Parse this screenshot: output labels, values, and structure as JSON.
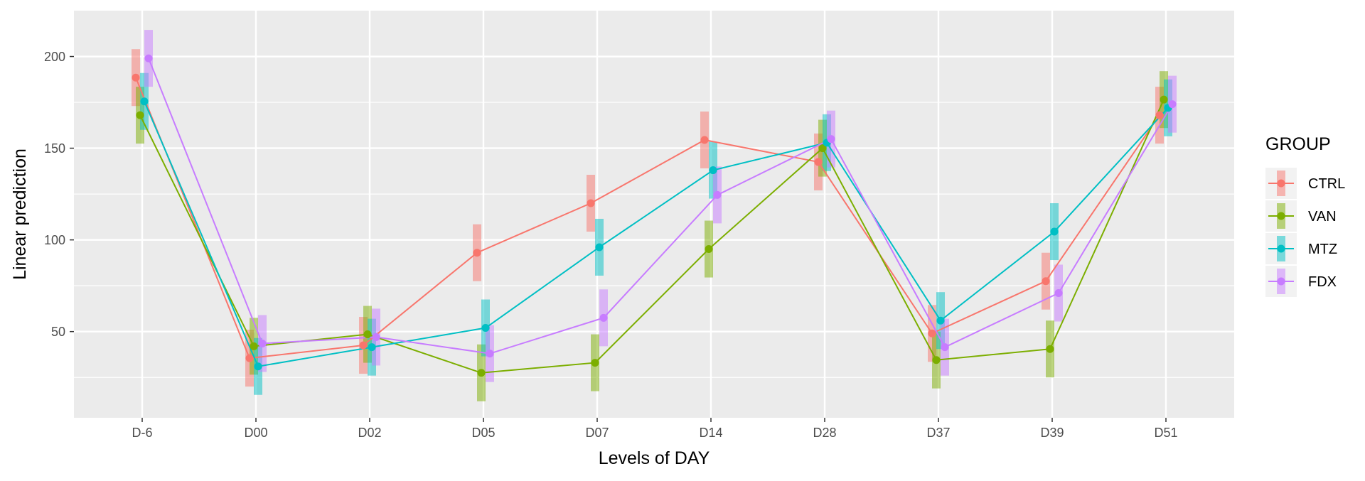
{
  "chart_data": {
    "type": "line",
    "title": "",
    "xlabel": "Levels of DAY",
    "ylabel": "Linear prediction",
    "categories": [
      "D-6",
      "D00",
      "D02",
      "D05",
      "D07",
      "D14",
      "D28",
      "D37",
      "D39",
      "D51"
    ],
    "ylim": [
      3,
      225
    ],
    "yticks": [
      50,
      100,
      150,
      200
    ],
    "grid": true,
    "legend": {
      "title": "GROUP",
      "position": "right"
    },
    "error_bar_halfwidth": 15.5,
    "series": [
      {
        "name": "CTRL",
        "color": "#F8766D",
        "values": [
          188.5,
          35.5,
          42.5,
          93.0,
          120.0,
          154.5,
          142.5,
          49.0,
          77.5,
          168.0
        ]
      },
      {
        "name": "VAN",
        "color": "#7CAE00",
        "values": [
          168.0,
          42.0,
          48.5,
          27.5,
          33.0,
          95.0,
          150.0,
          34.5,
          40.5,
          176.5
        ]
      },
      {
        "name": "MTZ",
        "color": "#00BFC4",
        "values": [
          175.5,
          31.0,
          41.5,
          52.0,
          96.0,
          138.0,
          153.0,
          56.0,
          104.5,
          172.0
        ]
      },
      {
        "name": "FDX",
        "color": "#C77CFF",
        "values": [
          199.0,
          43.5,
          47.0,
          38.0,
          57.5,
          124.5,
          155.0,
          41.5,
          71.0,
          174.0
        ]
      }
    ]
  }
}
